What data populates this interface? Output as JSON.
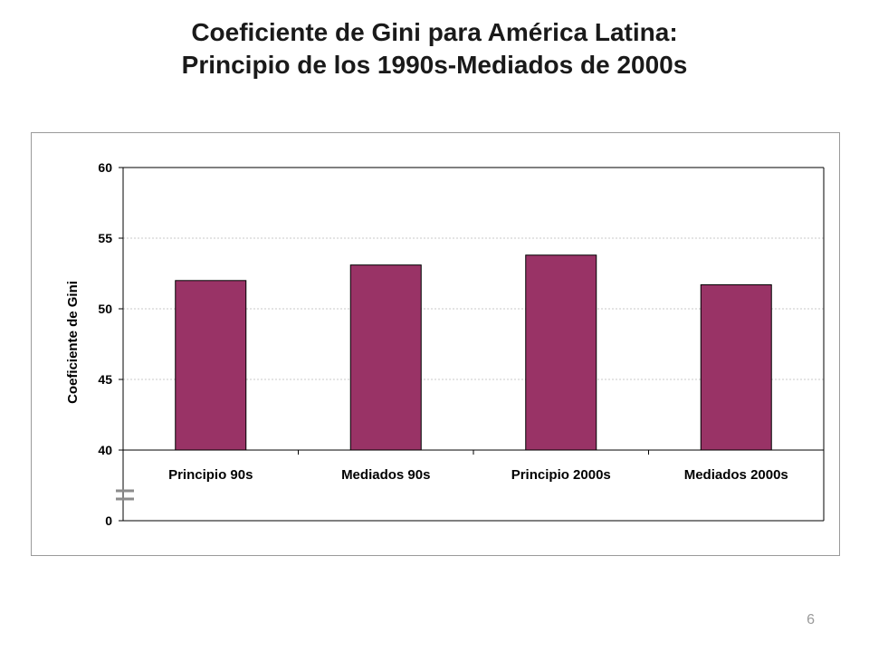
{
  "slide": {
    "title_line1": "Coeficiente de Gini para América Latina:",
    "title_line2": "Principio de los 1990s-Mediados de 2000s",
    "page_number": "6"
  },
  "colors": {
    "bar_fill": "#993366",
    "bar_stroke": "#000000",
    "gridline": "#c8c8c8",
    "axis": "#000000",
    "break_mark": "#8c8c8c"
  },
  "chart_data": {
    "type": "bar",
    "title": "",
    "xlabel": "",
    "ylabel": "Coeficiente de Gini",
    "categories": [
      "Principio 90s",
      "Mediados 90s",
      "Principio 2000s",
      "Mediados 2000s"
    ],
    "values": [
      52.0,
      53.1,
      53.8,
      51.7
    ],
    "ylim": [
      40,
      60
    ],
    "yticks": [
      "40",
      "45",
      "50",
      "55",
      "60"
    ],
    "axis_break": true,
    "axis_base_label": "0",
    "grid": true,
    "legend": "none"
  }
}
